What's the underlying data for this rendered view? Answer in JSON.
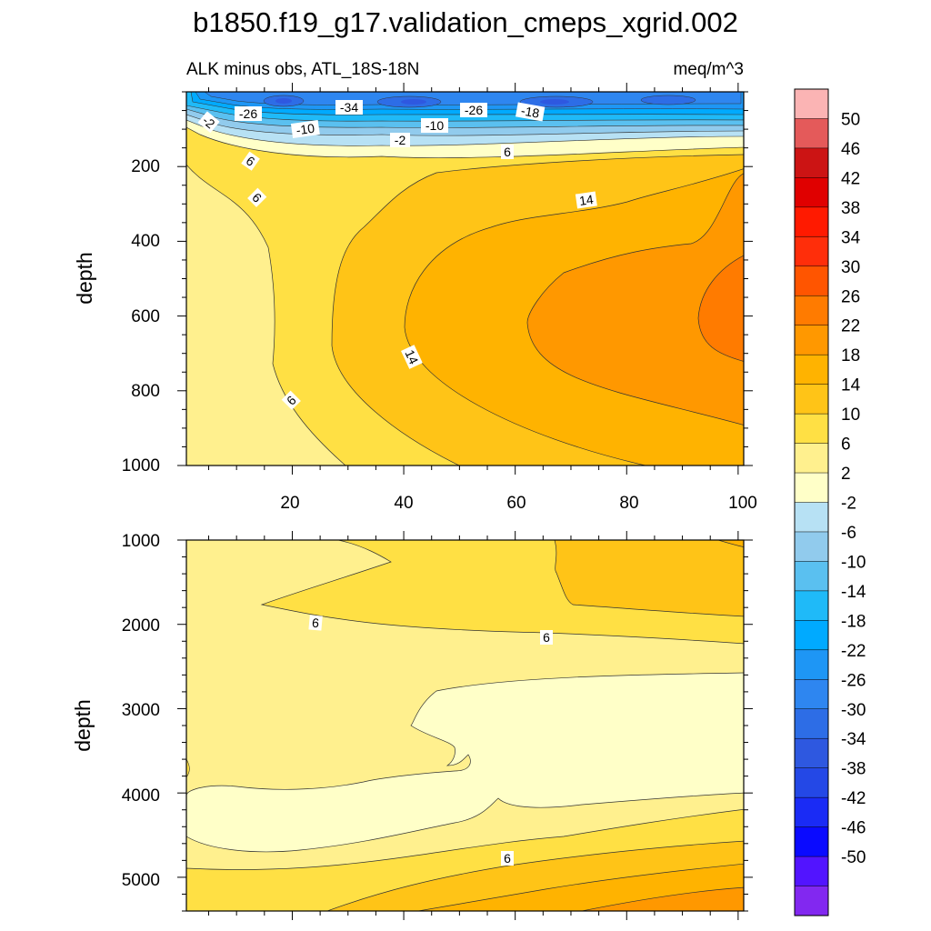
{
  "chart_data": {
    "type": "contour",
    "title": "b1850.f19_g17.validation_cmeps_xgrid.002",
    "subtitle_left": "ALK minus obs, ATL_18S-18N",
    "subtitle_right": "meq/m^3",
    "ylabel": "depth",
    "x_ticks": [
      "20",
      "40",
      "60",
      "80",
      "100"
    ],
    "xlim": [
      1,
      101
    ],
    "top_panel": {
      "ylim": [
        0,
        1000
      ],
      "y_ticks": [
        "200",
        "400",
        "600",
        "800",
        "1000"
      ],
      "contour_labels": [
        "-2",
        "-26",
        "-34",
        "-10",
        "-10",
        "-2",
        "-26",
        "-18",
        "6",
        "6",
        "6",
        "14",
        "14",
        "6"
      ]
    },
    "bottom_panel": {
      "ylim": [
        1000,
        5400
      ],
      "y_ticks": [
        "1000",
        "2000",
        "3000",
        "4000",
        "5000"
      ],
      "contour_labels": [
        "6",
        "6",
        "6"
      ]
    },
    "colorbar": {
      "labels": [
        "50",
        "46",
        "42",
        "38",
        "34",
        "30",
        "26",
        "22",
        "18",
        "14",
        "10",
        "6",
        "2",
        "-2",
        "-6",
        "-10",
        "-14",
        "-18",
        "-22",
        "-26",
        "-30",
        "-34",
        "-38",
        "-42",
        "-46",
        "-50"
      ],
      "colors": [
        "#fbb4b4",
        "#e45a5a",
        "#cc1414",
        "#e00000",
        "#ff1a00",
        "#ff2e0a",
        "#ff5500",
        "#ff7b00",
        "#ff9800",
        "#ffb300",
        "#ffc417",
        "#ffe044",
        "#fff08e",
        "#ffffc8",
        "#b7e1f4",
        "#91cbed",
        "#5ac0f0",
        "#1fbaf8",
        "#00aaff",
        "#1e96f5",
        "#2e86f0",
        "#2d6de6",
        "#2e58e0",
        "#2448e6",
        "#1a2bf5",
        "#0a0aff",
        "#5214ff",
        "#8228f0"
      ]
    }
  }
}
